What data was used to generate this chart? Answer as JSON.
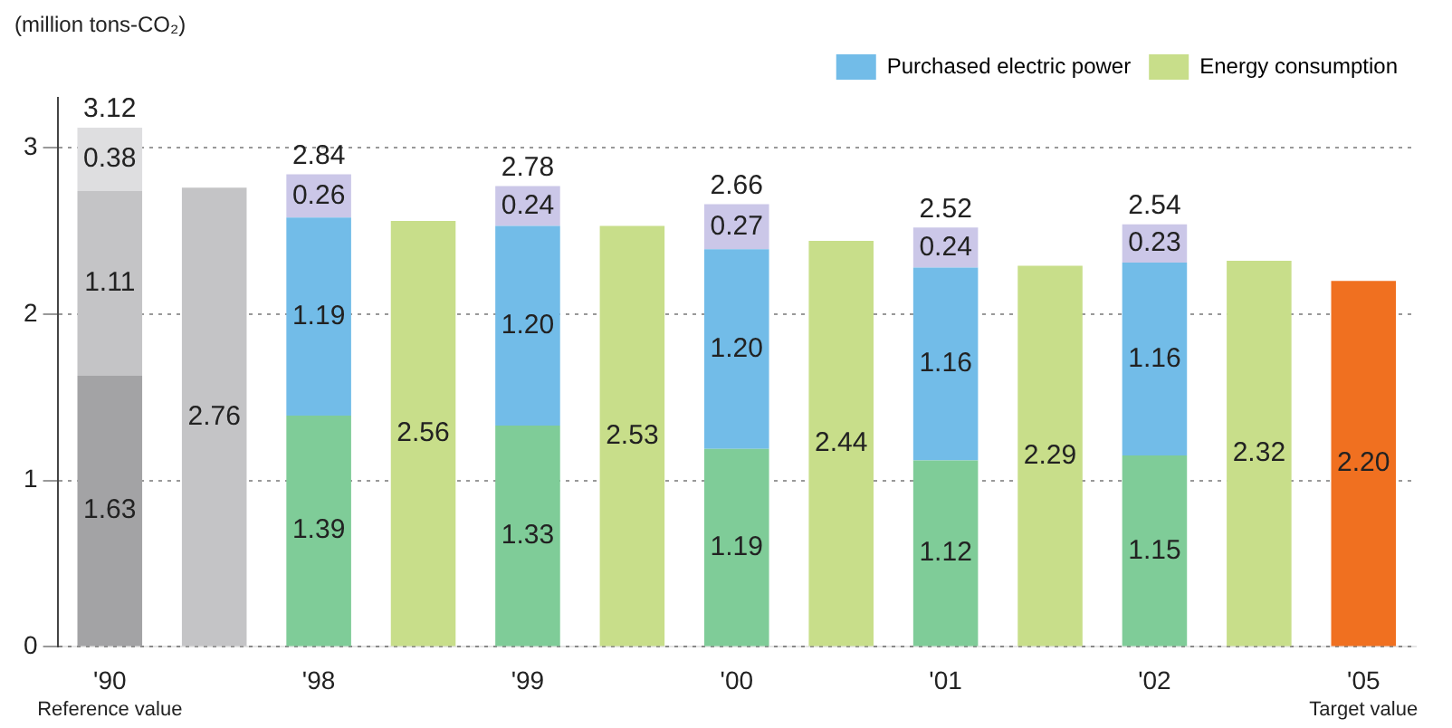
{
  "chart_data": {
    "type": "bar",
    "stacked": true,
    "ylabel": "(million tons-CO₂)",
    "categories": [
      "'90",
      null,
      "'98",
      null,
      "'99",
      null,
      "'00",
      null,
      "'01",
      null,
      "'02",
      null,
      "'05"
    ],
    "series": [
      {
        "color": "#7fcc98",
        "colors": [
          "#a3a3a5",
          "#a3a3a5",
          "#7fcc98",
          "#7fcc98",
          "#7fcc98",
          "#7fcc98",
          "#7fcc98",
          "#7fcc98",
          "#7fcc98",
          "#7fcc98",
          "#7fcc98",
          "#7fcc98",
          "#f07020"
        ],
        "values": [
          1.63,
          null,
          1.39,
          null,
          1.33,
          null,
          1.19,
          null,
          1.12,
          null,
          1.15,
          null,
          2.2
        ],
        "value_labels": [
          "1.63",
          null,
          "1.39",
          null,
          "1.33",
          null,
          "1.19",
          null,
          "1.12",
          null,
          "1.15",
          null,
          "2.20"
        ]
      },
      {
        "name": "Purchased electric power",
        "color": "#72bce8",
        "colors": [
          "#c4c4c6",
          "#c4c4c6",
          "#72bce8",
          "#72bce8",
          "#72bce8",
          "#72bce8",
          "#72bce8",
          "#72bce8",
          "#72bce8",
          "#72bce8",
          "#72bce8",
          "#72bce8",
          "#72bce8"
        ],
        "values": [
          1.11,
          null,
          1.19,
          null,
          1.2,
          null,
          1.2,
          null,
          1.16,
          null,
          1.16,
          null,
          null
        ],
        "value_labels": [
          "1.11",
          null,
          "1.19",
          null,
          "1.20",
          null,
          "1.20",
          null,
          "1.16",
          null,
          "1.16",
          null,
          null
        ]
      },
      {
        "color": "#cbc7e8",
        "colors": [
          "#dedee0",
          "#dedee0",
          "#cbc7e8",
          "#cbc7e8",
          "#cbc7e8",
          "#cbc7e8",
          "#cbc7e8",
          "#cbc7e8",
          "#cbc7e8",
          "#cbc7e8",
          "#cbc7e8",
          "#cbc7e8",
          "#cbc7e8"
        ],
        "values": [
          0.38,
          null,
          0.26,
          null,
          0.24,
          null,
          0.27,
          null,
          0.24,
          null,
          0.23,
          null,
          null
        ]
      },
      {
        "name": "Energy consumption",
        "color": "#c8de8a",
        "colors": [
          "#c4c4c6",
          "#c4c4c6",
          "#c8de8a",
          "#c8de8a",
          "#c8de8a",
          "#c8de8a",
          "#c8de8a",
          "#c8de8a",
          "#c8de8a",
          "#c8de8a",
          "#c8de8a",
          "#c8de8a",
          "#c8de8a"
        ],
        "values": [
          null,
          2.76,
          null,
          2.56,
          null,
          2.53,
          null,
          2.44,
          null,
          2.29,
          null,
          2.32,
          null
        ]
      }
    ],
    "totals": [
      "3.12",
      null,
      "2.84",
      null,
      "2.78",
      null,
      "2.66",
      null,
      "2.52",
      null,
      "2.54",
      null,
      null
    ],
    "data_labels": true,
    "ylim": [
      0,
      3.3
    ],
    "yticks": [
      0,
      1,
      2,
      3
    ],
    "grid": "y",
    "legend": "top right",
    "annotations": [
      "Reference value",
      "Target value"
    ]
  }
}
